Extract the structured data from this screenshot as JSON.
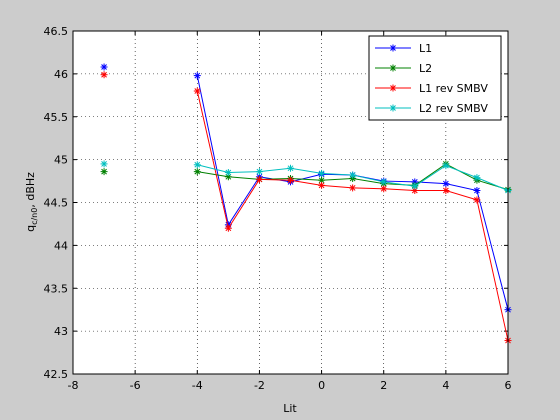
{
  "chart_data": {
    "type": "line",
    "xlabel": "Lit",
    "ylabel": "q",
    "ylabel_sub": "c/n0",
    "ylabel_unit": ", dBHz",
    "xlim": [
      -8,
      6
    ],
    "ylim": [
      42.5,
      46.5
    ],
    "xticks": [
      -8,
      -6,
      -4,
      -2,
      0,
      2,
      4,
      6
    ],
    "xtick_labels": [
      "-8",
      "-6",
      "-4",
      "-2",
      "0",
      "2",
      "4",
      "6"
    ],
    "yticks": [
      42.5,
      43,
      43.5,
      44,
      44.5,
      45,
      45.5,
      46,
      46.5
    ],
    "ytick_labels": [
      "42.5",
      "43",
      "43.5",
      "44",
      "44.5",
      "45",
      "45.5",
      "46",
      "46.5"
    ],
    "grid": true,
    "legend_position": "top-right",
    "x": [
      -7,
      -4,
      -3,
      -2,
      -1,
      0,
      1,
      2,
      3,
      4,
      5,
      6
    ],
    "series": [
      {
        "name": "L1",
        "color": "#0000ff",
        "values": [
          46.08,
          45.98,
          44.24,
          44.8,
          44.74,
          44.83,
          44.82,
          44.75,
          44.74,
          44.72,
          44.64,
          43.25
        ]
      },
      {
        "name": "L2",
        "color": "#008000",
        "values": [
          44.86,
          44.86,
          44.8,
          44.77,
          44.78,
          44.76,
          44.78,
          44.72,
          44.7,
          44.95,
          44.76,
          44.65
        ]
      },
      {
        "name": "L1 rev SMBV",
        "color": "#ff0000",
        "values": [
          45.99,
          45.8,
          44.2,
          44.77,
          44.76,
          44.7,
          44.67,
          44.66,
          44.64,
          44.64,
          44.53,
          42.89
        ]
      },
      {
        "name": "L2 rev SMBV",
        "color": "#00bfbf",
        "values": [
          44.95,
          44.94,
          44.85,
          44.86,
          44.9,
          44.84,
          44.82,
          44.74,
          44.69,
          44.93,
          44.79,
          44.64
        ]
      }
    ]
  }
}
